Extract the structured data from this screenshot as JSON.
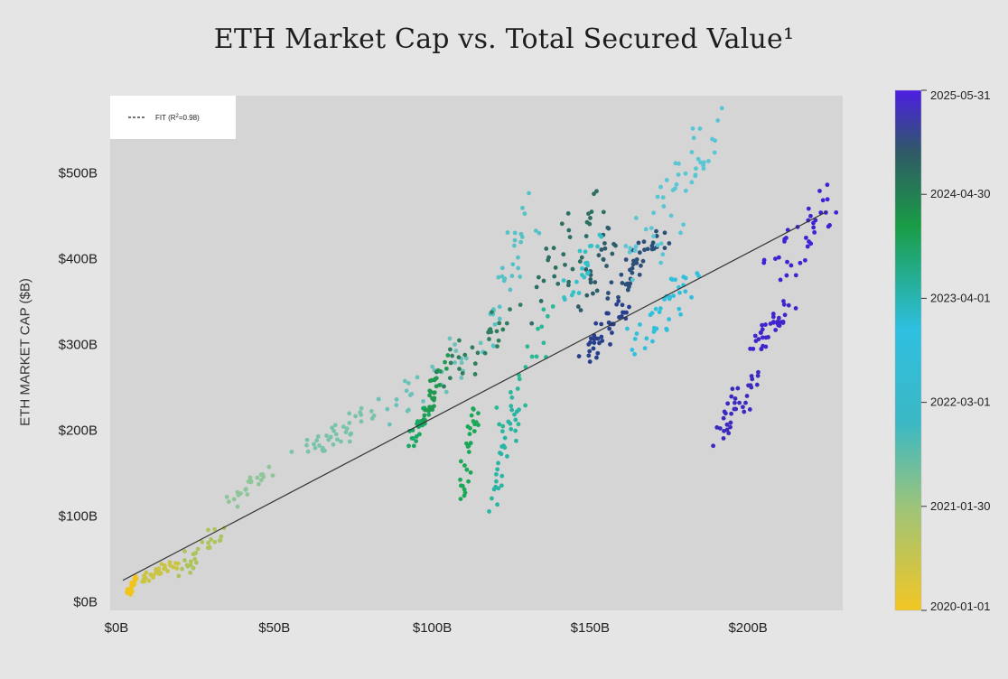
{
  "chart_data": {
    "type": "scatter",
    "title": "ETH Market Cap vs. Total Secured Value¹",
    "ylabel": "ETH MARKET CAP ($B)",
    "xlabel": "",
    "xlim": [
      -2,
      230
    ],
    "ylim": [
      -10,
      590
    ],
    "x_ticks": [
      {
        "v": 0,
        "label": "$0B"
      },
      {
        "v": 50,
        "label": "$50B"
      },
      {
        "v": 100,
        "label": "$100B"
      },
      {
        "v": 150,
        "label": "$150B"
      },
      {
        "v": 200,
        "label": "$200B"
      }
    ],
    "y_ticks": [
      {
        "v": 0,
        "label": "$0B"
      },
      {
        "v": 100,
        "label": "$100B"
      },
      {
        "v": 200,
        "label": "$200B"
      },
      {
        "v": 300,
        "label": "$300B"
      },
      {
        "v": 400,
        "label": "$400B"
      },
      {
        "v": 500,
        "label": "$500B"
      }
    ],
    "grid": false,
    "legend": {
      "position": "top-left",
      "label_prefix": "FIT (R",
      "label_sup": "2",
      "label_suffix": "=0.98)"
    },
    "fit": {
      "x": [
        2,
        225
      ],
      "y": [
        25,
        455
      ]
    },
    "colorbar": {
      "ticks": [
        "2025-05-31",
        "2024-04-30",
        "2023-04-01",
        "2022-03-01",
        "2021-01-30",
        "2020-01-01"
      ],
      "colors": [
        "#f2c624",
        "#3bb8c4",
        "#2fbfe0",
        "#1a9c45",
        "#2f5a66",
        "#4d1ee3"
      ]
    },
    "clusters": [
      {
        "t": 0.0,
        "color": "#f0c419",
        "x": [
          3,
          7
        ],
        "y": [
          8,
          30
        ],
        "n": 28
      },
      {
        "t": 0.05,
        "color": "#c9c443",
        "x": [
          7,
          20
        ],
        "y": [
          22,
          48
        ],
        "n": 30
      },
      {
        "t": 0.1,
        "color": "#adc45c",
        "x": [
          18,
          35
        ],
        "y": [
          30,
          88
        ],
        "n": 30
      },
      {
        "t": 0.18,
        "color": "#8ec699",
        "x": [
          35,
          50
        ],
        "y": [
          110,
          160
        ],
        "n": 22
      },
      {
        "t": 0.22,
        "color": "#79c3ab",
        "x": [
          55,
          85
        ],
        "y": [
          165,
          225
        ],
        "n": 40
      },
      {
        "t": 0.26,
        "color": "#6ac1ba",
        "x": [
          80,
          120
        ],
        "y": [
          200,
          320
        ],
        "n": 30
      },
      {
        "t": 0.32,
        "color": "#55c2c6",
        "x": [
          115,
          135
        ],
        "y": [
          300,
          480
        ],
        "n": 32
      },
      {
        "t": 0.34,
        "color": "#29b5a4",
        "x": [
          118,
          128
        ],
        "y": [
          110,
          240
        ],
        "n": 32
      },
      {
        "t": 0.38,
        "color": "#2ab896",
        "x": [
          120,
          140
        ],
        "y": [
          190,
          360
        ],
        "n": 20
      },
      {
        "t": 0.42,
        "color": "#1ba858",
        "x": [
          108,
          115
        ],
        "y": [
          115,
          240
        ],
        "n": 30
      },
      {
        "t": 0.44,
        "color": "#17a862",
        "x": [
          92,
          100
        ],
        "y": [
          180,
          230
        ],
        "n": 24
      },
      {
        "t": 0.46,
        "color": "#209a50",
        "x": [
          96,
          105
        ],
        "y": [
          200,
          285
        ],
        "n": 30
      },
      {
        "t": 0.48,
        "color": "#2e7f5e",
        "x": [
          100,
          130
        ],
        "y": [
          250,
          350
        ],
        "n": 30
      },
      {
        "t": 0.52,
        "color": "#2b6e64",
        "x": [
          130,
          155
        ],
        "y": [
          330,
          490
        ],
        "n": 32
      },
      {
        "t": 0.56,
        "color": "#2d5c6a",
        "x": [
          145,
          160
        ],
        "y": [
          340,
          450
        ],
        "n": 24
      },
      {
        "t": 0.6,
        "color": "#33c0c7",
        "x": [
          140,
          155
        ],
        "y": [
          340,
          430
        ],
        "n": 22
      },
      {
        "t": 0.64,
        "color": "#283f8b",
        "x": [
          145,
          165
        ],
        "y": [
          280,
          350
        ],
        "n": 40
      },
      {
        "t": 0.68,
        "color": "#2c4f7a",
        "x": [
          155,
          175
        ],
        "y": [
          350,
          440
        ],
        "n": 40
      },
      {
        "t": 0.72,
        "color": "#30c0dc",
        "x": [
          162,
          185
        ],
        "y": [
          290,
          390
        ],
        "n": 40
      },
      {
        "t": 0.78,
        "color": "#58c6d4",
        "x": [
          160,
          195
        ],
        "y": [
          380,
          570
        ],
        "n": 50
      },
      {
        "t": 0.84,
        "color": "#3b2ac0",
        "x": [
          188,
          205
        ],
        "y": [
          175,
          280
        ],
        "n": 36
      },
      {
        "t": 0.9,
        "color": "#3f26cc",
        "x": [
          200,
          215
        ],
        "y": [
          290,
          350
        ],
        "n": 36
      },
      {
        "t": 0.96,
        "color": "#3d23d4",
        "x": [
          205,
          230
        ],
        "y": [
          370,
          485
        ],
        "n": 36
      }
    ]
  }
}
